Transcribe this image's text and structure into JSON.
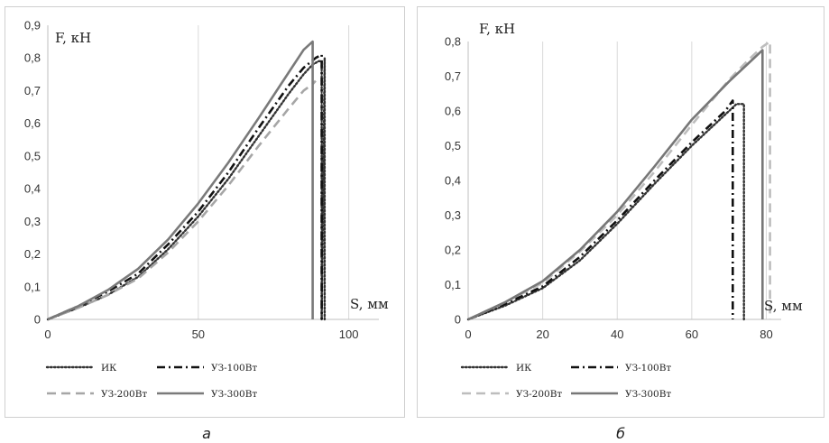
{
  "chart_data": [
    {
      "type": "line",
      "caption": "а",
      "ylabel": "F, кН",
      "xlabel": "S, мм",
      "xlim": [
        0,
        110
      ],
      "ylim": [
        0,
        0.9
      ],
      "xticks": [
        0,
        50,
        100
      ],
      "xtick_labels": [
        "0",
        "50",
        "100"
      ],
      "yticks": [
        0,
        0.1,
        0.2,
        0.3,
        0.4,
        0.5,
        0.6,
        0.7,
        0.8,
        0.9
      ],
      "ytick_labels": [
        "0",
        "0,1",
        "0,2",
        "0,3",
        "0,4",
        "0,5",
        "0,6",
        "0,7",
        "0,8",
        "0,9"
      ],
      "grid": "vertical",
      "legend": "bottom",
      "series": [
        {
          "name": "ИК",
          "style": "dotted",
          "color": "#333333",
          "x": [
            0,
            10,
            20,
            30,
            40,
            50,
            60,
            70,
            80,
            85,
            88,
            90,
            91,
            91,
            92,
            92
          ],
          "y": [
            0,
            0.035,
            0.075,
            0.13,
            0.215,
            0.315,
            0.43,
            0.56,
            0.69,
            0.75,
            0.78,
            0.79,
            0.79,
            0.0,
            0.8,
            0.0
          ]
        },
        {
          "name": "УЗ-100Вт",
          "style": "dashdot",
          "color": "#111111",
          "x": [
            0,
            10,
            20,
            30,
            40,
            50,
            60,
            70,
            80,
            85,
            89,
            91,
            91
          ],
          "y": [
            0,
            0.04,
            0.085,
            0.14,
            0.23,
            0.33,
            0.45,
            0.585,
            0.715,
            0.77,
            0.8,
            0.81,
            0.0
          ]
        },
        {
          "name": "УЗ-200Вт",
          "style": "dashed",
          "color": "#a6a6a6",
          "x": [
            0,
            10,
            20,
            30,
            40,
            50,
            60,
            70,
            80,
            85,
            88,
            89
          ],
          "y": [
            0,
            0.035,
            0.075,
            0.125,
            0.205,
            0.3,
            0.41,
            0.53,
            0.645,
            0.7,
            0.72,
            0.73
          ]
        },
        {
          "name": "УЗ-300Вт",
          "style": "solid",
          "color": "#7a7a7a",
          "x": [
            0,
            10,
            20,
            30,
            40,
            50,
            60,
            70,
            80,
            85,
            88,
            88
          ],
          "y": [
            0,
            0.04,
            0.09,
            0.155,
            0.245,
            0.355,
            0.48,
            0.615,
            0.755,
            0.825,
            0.85,
            0.0
          ]
        }
      ]
    },
    {
      "type": "line",
      "caption": "б",
      "ylabel": "F, кН",
      "xlabel": "S, мм",
      "xlim": [
        0,
        84
      ],
      "ylim": [
        0,
        0.8
      ],
      "xticks": [
        0,
        20,
        40,
        60,
        80
      ],
      "xtick_labels": [
        "0",
        "20",
        "40",
        "60",
        "80"
      ],
      "yticks": [
        0,
        0.1,
        0.2,
        0.3,
        0.4,
        0.5,
        0.6,
        0.7,
        0.8
      ],
      "ytick_labels": [
        "0",
        "0,1",
        "0,2",
        "0,3",
        "0,4",
        "0,5",
        "0,6",
        "0,7",
        "0,8"
      ],
      "grid": "vertical",
      "legend": "bottom",
      "series": [
        {
          "name": "ИК",
          "style": "dotted",
          "color": "#333333",
          "x": [
            0,
            10,
            20,
            30,
            40,
            50,
            60,
            65,
            70,
            72,
            74,
            74
          ],
          "y": [
            0,
            0.04,
            0.09,
            0.17,
            0.275,
            0.39,
            0.5,
            0.55,
            0.6,
            0.62,
            0.62,
            0.0
          ]
        },
        {
          "name": "УЗ-100Вт",
          "style": "dashdot",
          "color": "#111111",
          "x": [
            0,
            10,
            20,
            30,
            40,
            50,
            60,
            65,
            69,
            71,
            71
          ],
          "y": [
            0,
            0.045,
            0.095,
            0.18,
            0.285,
            0.4,
            0.51,
            0.56,
            0.6,
            0.63,
            0.0
          ]
        },
        {
          "name": "УЗ-200Вт",
          "style": "dashed",
          "color": "#bdbdbd",
          "x": [
            0,
            10,
            20,
            30,
            40,
            50,
            60,
            70,
            75,
            79,
            81,
            81
          ],
          "y": [
            0,
            0.05,
            0.105,
            0.195,
            0.3,
            0.425,
            0.56,
            0.69,
            0.745,
            0.785,
            0.8,
            0.0
          ]
        },
        {
          "name": "УЗ-300Вт",
          "style": "solid",
          "color": "#777777",
          "x": [
            0,
            10,
            20,
            30,
            40,
            50,
            60,
            70,
            75,
            79,
            79
          ],
          "y": [
            0,
            0.05,
            0.11,
            0.2,
            0.31,
            0.44,
            0.575,
            0.685,
            0.735,
            0.775,
            0.0
          ]
        }
      ]
    }
  ]
}
